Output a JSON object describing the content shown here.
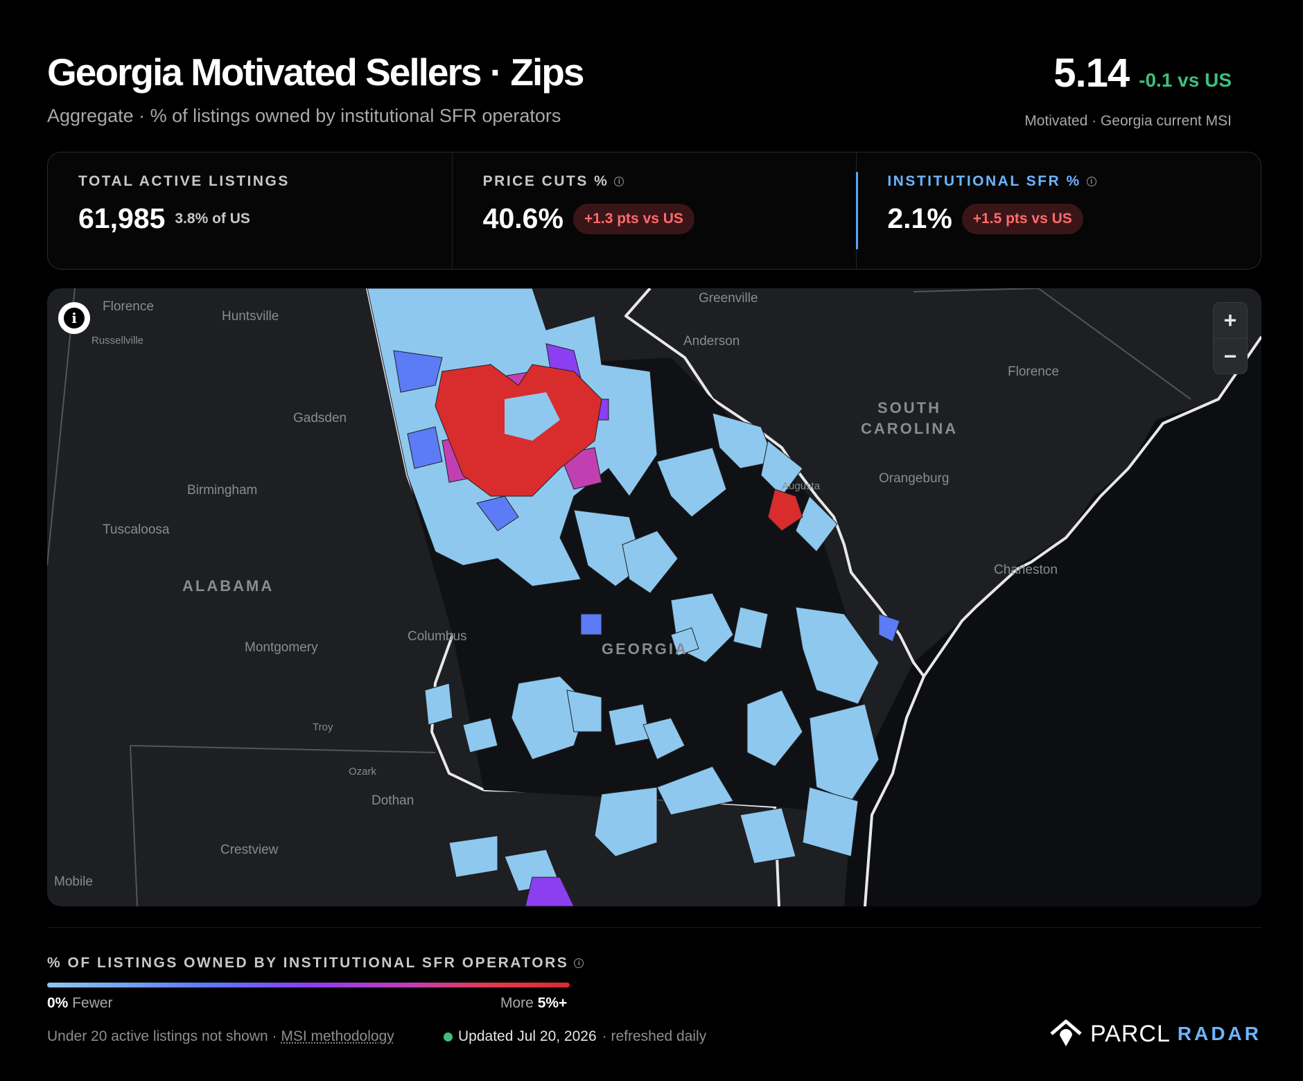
{
  "header": {
    "title": "Georgia Motivated Sellers · Zips",
    "subtitle": "Aggregate · % of listings owned by institutional SFR operators"
  },
  "msi": {
    "value": "5.14",
    "delta": "-0.1 vs US",
    "caption": "Motivated · Georgia current MSI"
  },
  "stats": [
    {
      "label": "TOTAL ACTIVE LISTINGS",
      "value": "61,985",
      "note": "3.8% of US",
      "info": false
    },
    {
      "label": "PRICE CUTS %",
      "value": "40.6%",
      "badge": "+1.3 pts vs US",
      "info": true
    },
    {
      "label": "INSTITUTIONAL SFR %",
      "value": "2.1%",
      "badge": "+1.5 pts vs US",
      "info": true,
      "active": true
    }
  ],
  "map": {
    "labels": {
      "florence_al": "Florence",
      "huntsville": "Huntsville",
      "russellville": "Russellville",
      "gadsden": "Gadsden",
      "birmingham": "Birmingham",
      "tuscaloosa": "Tuscaloosa",
      "alabama": "ALABAMA",
      "montgomery": "Montgomery",
      "troy": "Troy",
      "ozark": "Ozark",
      "dothan": "Dothan",
      "crestview": "Crestview",
      "mobile": "Mobile",
      "columbus": "Columbus",
      "georgia": "GEORGIA",
      "greenville": "Greenville",
      "anderson": "Anderson",
      "south": "SOUTH",
      "carolina": "CAROLINA",
      "florence_sc": "Florence",
      "orangeburg": "Orangeburg",
      "charleston": "Charleston",
      "augusta": "Augusta"
    },
    "colors": {
      "fewer": "#8ec8ee",
      "low": "#5b7cf5",
      "mid": "#8b3ff0",
      "high": "#c23fb2",
      "more": "#d92c2c",
      "land": "#1e1f22",
      "unshown": "#101114",
      "ocean": "#0d0e11"
    }
  },
  "legend": {
    "title": "% OF LISTINGS OWNED BY INSTITUTIONAL SFR OPERATORS",
    "low_value": "0%",
    "low_label": "Fewer",
    "high_label": "More",
    "high_value": "5%+"
  },
  "footer": {
    "note": "Under 20 active listings not shown · ",
    "link": "MSI methodology",
    "updated": "Updated Jul 20, 2026",
    "refresh": "· refreshed daily"
  },
  "brand": {
    "name": "PARCL",
    "product": "RADAR"
  }
}
